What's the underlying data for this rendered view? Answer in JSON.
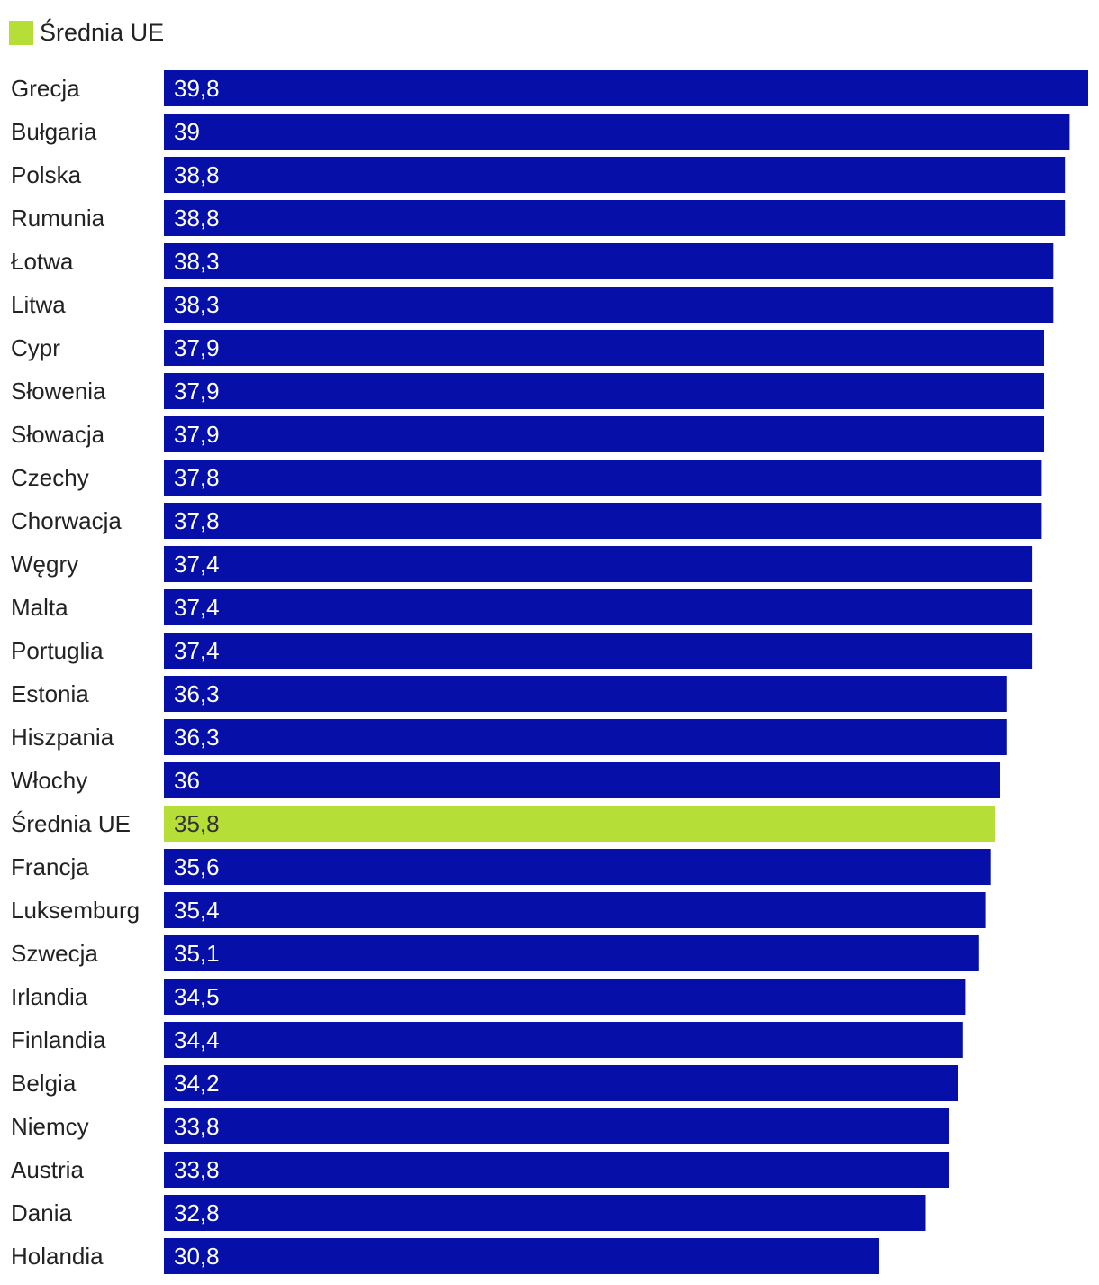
{
  "legend": {
    "label": "Średnia UE",
    "color": "#b5de37"
  },
  "colors": {
    "bar": "#0610a8",
    "highlight": "#b5de37",
    "label_on_bar": "#ffffff",
    "label_on_highlight": "#333333",
    "category_text": "#222222"
  },
  "chart_data": {
    "type": "bar",
    "orientation": "horizontal",
    "title": "",
    "xlabel": "",
    "ylabel": "",
    "grid": false,
    "legend_position": "top-left",
    "xlim": [
      0,
      39.8
    ],
    "categories": [
      "Grecja",
      "Bułgaria",
      "Polska",
      "Rumunia",
      "Łotwa",
      "Litwa",
      "Cypr",
      "Słowenia",
      "Słowacja",
      "Czechy",
      "Chorwacja",
      "Węgry",
      "Malta",
      "Portuglia",
      "Estonia",
      "Hiszpania",
      "Włochy",
      "Średnia UE",
      "Francja",
      "Luksemburg",
      "Szwecja",
      "Irlandia",
      "Finlandia",
      "Belgia",
      "Niemcy",
      "Austria",
      "Dania",
      "Holandia"
    ],
    "values": [
      39.8,
      39,
      38.8,
      38.8,
      38.3,
      38.3,
      37.9,
      37.9,
      37.9,
      37.8,
      37.8,
      37.4,
      37.4,
      37.4,
      36.3,
      36.3,
      36,
      35.8,
      35.6,
      35.4,
      35.1,
      34.5,
      34.4,
      34.2,
      33.8,
      33.8,
      32.8,
      30.8
    ],
    "value_labels": [
      "39,8",
      "39",
      "38,8",
      "38,8",
      "38,3",
      "38,3",
      "37,9",
      "37,9",
      "37,9",
      "37,8",
      "37,8",
      "37,4",
      "37,4",
      "37,4",
      "36,3",
      "36,3",
      "36",
      "35,8",
      "35,6",
      "35,4",
      "35,1",
      "34,5",
      "34,4",
      "34,2",
      "33,8",
      "33,8",
      "32,8",
      "30,8"
    ],
    "highlight": [
      "Średnia UE"
    ]
  }
}
